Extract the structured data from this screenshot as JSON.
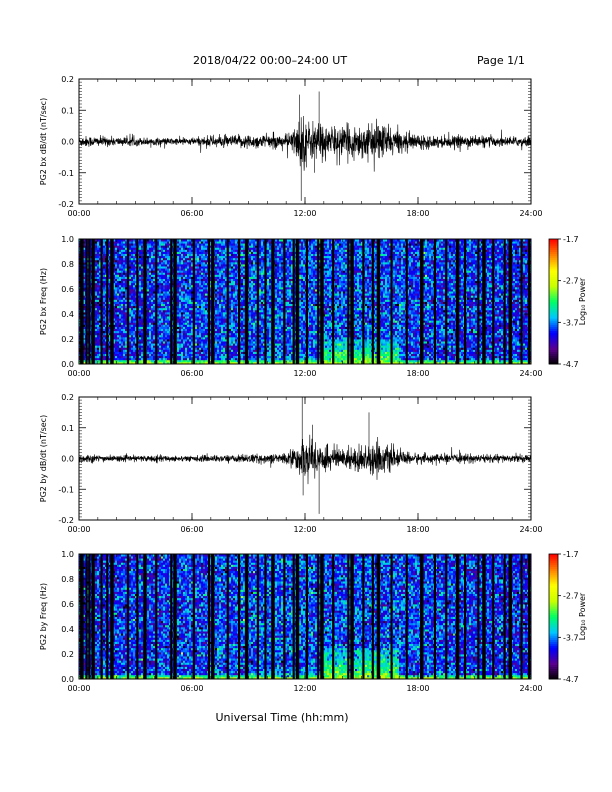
{
  "header": {
    "title": "2018/04/22  00:00–24:00 UT",
    "page": "Page 1/1"
  },
  "xlabel": "Universal Time (hh:mm)",
  "chart_data": [
    {
      "type": "line",
      "ylabel": "PG2 bx dB/dt (nT/sec)",
      "xlim": [
        0,
        24
      ],
      "ylim": [
        -0.2,
        0.2
      ],
      "x_ticks": [
        "00:00",
        "06:00",
        "12:00",
        "18:00",
        "24:00"
      ],
      "y_ticks": [
        "-0.2",
        "-0.1",
        "0.0",
        "0.1",
        "0.2"
      ],
      "series": [
        {
          "color": "#000000",
          "envelope_x_hours": [
            0,
            1,
            2,
            3,
            4,
            5,
            6,
            7,
            8,
            9,
            10,
            11,
            11.5,
            11.8,
            12,
            12.3,
            12.6,
            13,
            13.5,
            14,
            14.5,
            15,
            15.5,
            16,
            16.5,
            17,
            18,
            19,
            20,
            21,
            22,
            23,
            24
          ],
          "envelope_amplitude": [
            0.02,
            0.018,
            0.015,
            0.014,
            0.013,
            0.012,
            0.013,
            0.02,
            0.02,
            0.025,
            0.022,
            0.025,
            0.05,
            0.1,
            0.09,
            0.06,
            0.08,
            0.06,
            0.05,
            0.05,
            0.055,
            0.06,
            0.05,
            0.07,
            0.05,
            0.035,
            0.025,
            0.02,
            0.02,
            0.02,
            0.018,
            0.015,
            0.02
          ],
          "spikes": [
            {
              "x": 11.7,
              "y": 0.15
            },
            {
              "x": 11.8,
              "y": -0.19
            },
            {
              "x": 12.75,
              "y": 0.16
            },
            {
              "x": 12.5,
              "y": -0.1
            }
          ]
        }
      ]
    },
    {
      "type": "heatmap",
      "ylabel": "PG2 bx Freq (Hz)",
      "xlim": [
        0,
        24
      ],
      "ylim": [
        0,
        1.0
      ],
      "x_ticks": [
        "00:00",
        "06:00",
        "12:00",
        "18:00",
        "24:00"
      ],
      "y_ticks": [
        "0.0",
        "0.2",
        "0.4",
        "0.6",
        "0.8",
        "1.0"
      ],
      "colorbar": {
        "label": "Log₁₀ Power",
        "range": [
          -4.7,
          -1.7
        ],
        "ticks": [
          "-1.7",
          "-2.7",
          "-3.7",
          "-4.7"
        ],
        "colors": [
          "#000000",
          "#5a0090",
          "#0000ff",
          "#00c8ff",
          "#00ff64",
          "#c8ff00",
          "#ffff00",
          "#ff8000",
          "#ff0000"
        ]
      },
      "data_gaps_hours": [
        0.15,
        0.4,
        0.55,
        0.75,
        1.2,
        1.5,
        1.75,
        2.6,
        3.1,
        3.5,
        4.1,
        4.9,
        5.1,
        6.1,
        6.9,
        7.1,
        7.9,
        8.5,
        8.9,
        9.5,
        9.9,
        10.3,
        10.9,
        11.4,
        11.6,
        12.1,
        12.7,
        12.9,
        13.5,
        14.3,
        14.5,
        15.1,
        15.6,
        15.9,
        16.6,
        17.4,
        18.2,
        18.9,
        19.5,
        20.1,
        20.5,
        21.2,
        21.5,
        22.0,
        22.6,
        22.9,
        23.5,
        23.9
      ],
      "low_freq_power_bands": [
        {
          "x_range": [
            0,
            24
          ],
          "freq_max": 0.03,
          "log_power": -2.7
        },
        {
          "x_range": [
            13,
            17
          ],
          "freq_max": 0.2,
          "log_power": -3.0
        },
        {
          "x_range": [
            9,
            13
          ],
          "freq_max": 0.08,
          "log_power": -3.4
        }
      ]
    },
    {
      "type": "line",
      "ylabel": "PG2 by dB/dt (nT/sec)",
      "xlim": [
        0,
        24
      ],
      "ylim": [
        -0.2,
        0.2
      ],
      "x_ticks": [
        "00:00",
        "06:00",
        "12:00",
        "18:00",
        "24:00"
      ],
      "y_ticks": [
        "-0.2",
        "-0.1",
        "0.0",
        "0.1",
        "0.2"
      ],
      "series": [
        {
          "color": "#000000",
          "envelope_x_hours": [
            0,
            1,
            2,
            3,
            4,
            5,
            6,
            7,
            8,
            9,
            10,
            11,
            11.5,
            11.8,
            12,
            12.3,
            12.6,
            13,
            13.5,
            14,
            14.5,
            15,
            15.5,
            16,
            16.5,
            17,
            18,
            19,
            20,
            21,
            22,
            23,
            24
          ],
          "envelope_amplitude": [
            0.018,
            0.012,
            0.01,
            0.01,
            0.012,
            0.01,
            0.01,
            0.012,
            0.012,
            0.015,
            0.015,
            0.02,
            0.04,
            0.06,
            0.07,
            0.06,
            0.07,
            0.045,
            0.04,
            0.035,
            0.04,
            0.05,
            0.05,
            0.06,
            0.04,
            0.025,
            0.018,
            0.015,
            0.015,
            0.015,
            0.015,
            0.012,
            0.015
          ],
          "spikes": [
            {
              "x": 11.85,
              "y": 0.2
            },
            {
              "x": 11.9,
              "y": -0.12
            },
            {
              "x": 12.4,
              "y": 0.11
            },
            {
              "x": 12.75,
              "y": -0.18
            },
            {
              "x": 15.4,
              "y": 0.15
            }
          ]
        }
      ]
    },
    {
      "type": "heatmap",
      "ylabel": "PG2 by Freq (Hz)",
      "xlim": [
        0,
        24
      ],
      "ylim": [
        0,
        1.0
      ],
      "x_ticks": [
        "00:00",
        "06:00",
        "12:00",
        "18:00",
        "24:00"
      ],
      "y_ticks": [
        "0.0",
        "0.2",
        "0.4",
        "0.6",
        "0.8",
        "1.0"
      ],
      "colorbar": {
        "label": "Log₁₀ Power",
        "range": [
          -4.7,
          -1.7
        ],
        "ticks": [
          "-1.7",
          "-2.7",
          "-3.7",
          "-4.7"
        ],
        "colors": [
          "#000000",
          "#5a0090",
          "#0000ff",
          "#00c8ff",
          "#00ff64",
          "#c8ff00",
          "#ffff00",
          "#ff8000",
          "#ff0000"
        ]
      },
      "data_gaps_hours": [
        0.15,
        0.4,
        0.55,
        0.75,
        1.2,
        1.5,
        1.75,
        2.6,
        3.1,
        3.5,
        4.1,
        4.9,
        5.1,
        6.1,
        6.9,
        7.1,
        7.9,
        8.5,
        8.9,
        9.5,
        9.9,
        10.3,
        10.9,
        11.4,
        11.6,
        12.1,
        12.7,
        12.9,
        13.5,
        14.3,
        14.5,
        15.1,
        15.6,
        15.9,
        16.6,
        17.4,
        18.2,
        18.9,
        19.5,
        20.1,
        20.5,
        21.2,
        21.5,
        22.0,
        22.6,
        22.9,
        23.5,
        23.9
      ],
      "low_freq_power_bands": [
        {
          "x_range": [
            0,
            24
          ],
          "freq_max": 0.03,
          "log_power": -2.7
        },
        {
          "x_range": [
            13,
            17
          ],
          "freq_max": 0.25,
          "log_power": -3.0
        },
        {
          "x_range": [
            9,
            13
          ],
          "freq_max": 0.1,
          "log_power": -3.4
        }
      ]
    }
  ]
}
